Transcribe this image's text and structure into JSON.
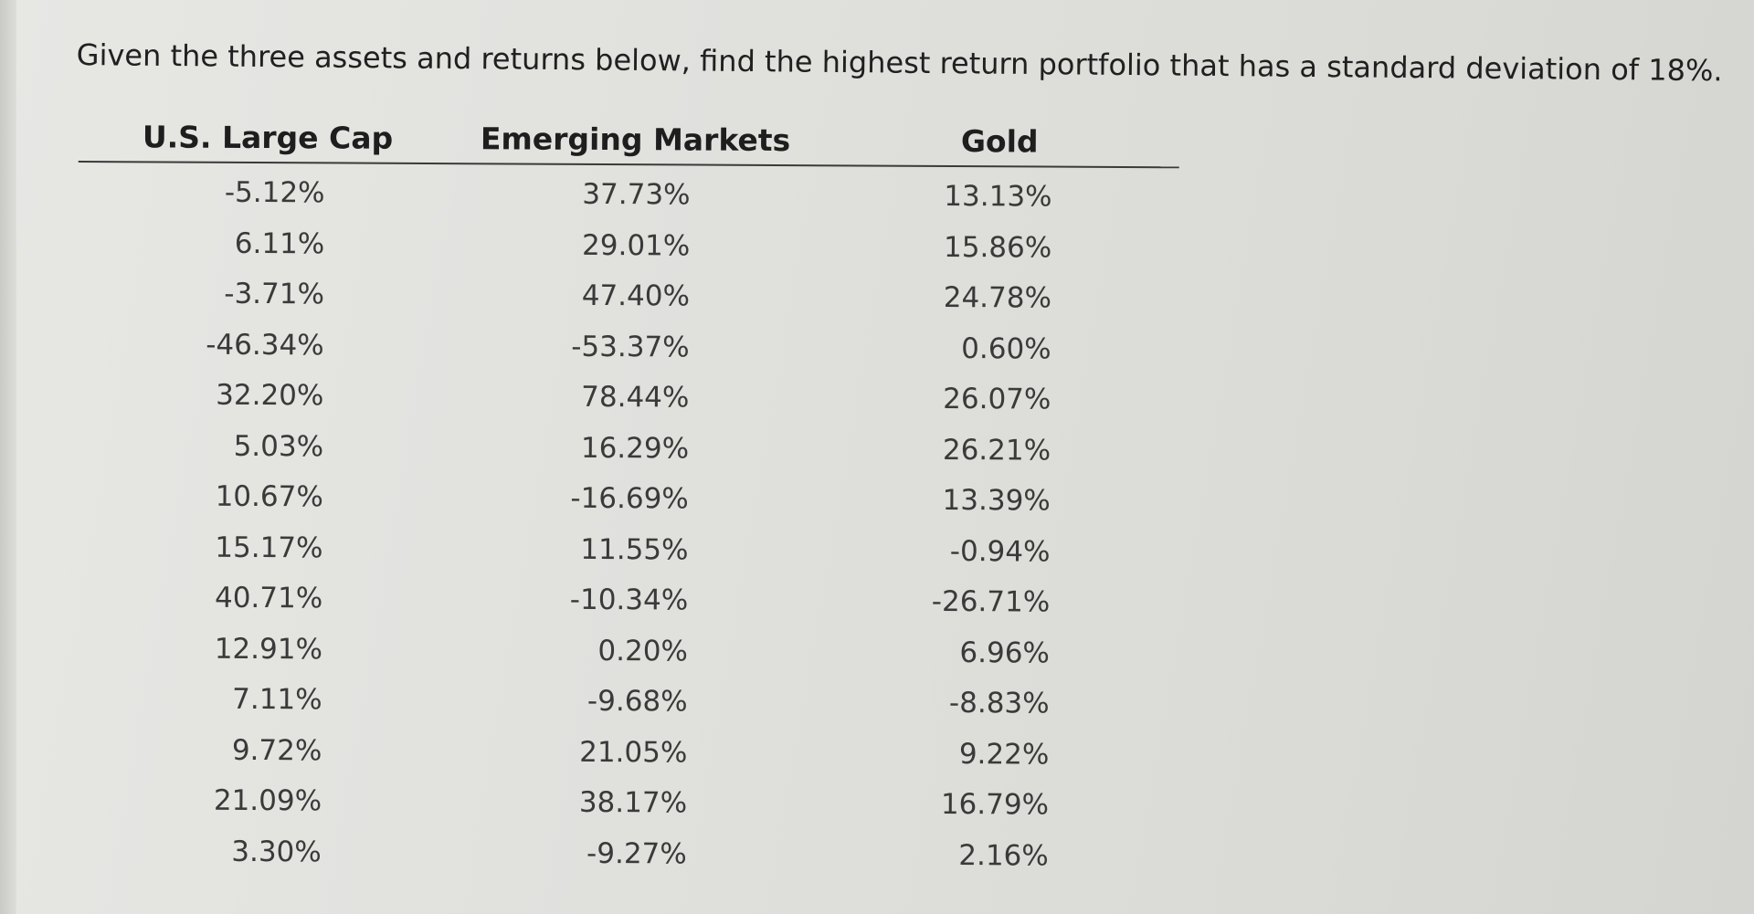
{
  "question": "Given the three assets and returns below, find the highest return portfolio that has a standard deviation of 18%.",
  "table": {
    "headers": [
      "U.S. Large Cap",
      "Emerging Markets",
      "Gold"
    ],
    "rows": [
      [
        "-5.12%",
        "37.73%",
        "13.13%"
      ],
      [
        "6.11%",
        "29.01%",
        "15.86%"
      ],
      [
        "-3.71%",
        "47.40%",
        "24.78%"
      ],
      [
        "-46.34%",
        "-53.37%",
        "0.60%"
      ],
      [
        "32.20%",
        "78.44%",
        "26.07%"
      ],
      [
        "5.03%",
        "16.29%",
        "26.21%"
      ],
      [
        "10.67%",
        "-16.69%",
        "13.39%"
      ],
      [
        "15.17%",
        "11.55%",
        "-0.94%"
      ],
      [
        "40.71%",
        "-10.34%",
        "-26.71%"
      ],
      [
        "12.91%",
        "0.20%",
        "6.96%"
      ],
      [
        "7.11%",
        "-9.68%",
        "-8.83%"
      ],
      [
        "9.72%",
        "21.05%",
        "9.22%"
      ],
      [
        "21.09%",
        "38.17%",
        "16.79%"
      ],
      [
        "3.30%",
        "-9.27%",
        "2.16%"
      ]
    ]
  }
}
